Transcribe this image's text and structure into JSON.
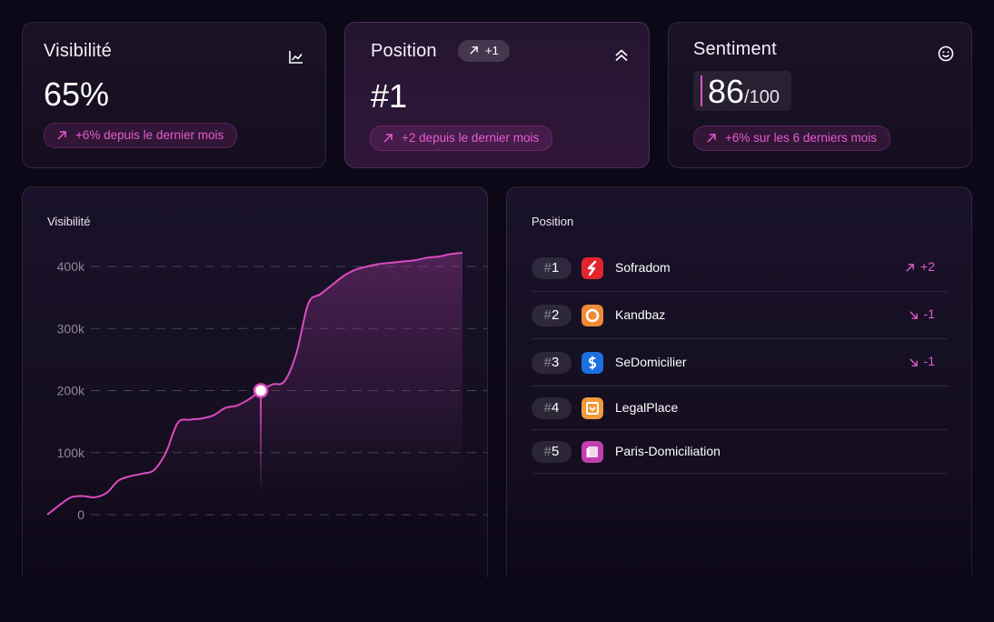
{
  "kpis": {
    "visibility": {
      "title": "Visibilité",
      "value": "65%",
      "change": "+6% depuis le dernier mois",
      "icon": "chart-line-icon"
    },
    "position": {
      "title": "Position",
      "badge": "+1",
      "value": "#1",
      "change": "+2 depuis le dernier mois",
      "icon": "chevrons-up-icon"
    },
    "sentiment": {
      "title": "Sentiment",
      "value": "86",
      "max": "/100",
      "change": "+6% sur les 6 derniers mois",
      "icon": "smiley-icon"
    }
  },
  "chart_panel": {
    "title": "Visibilité"
  },
  "chart_data": {
    "type": "area",
    "title": "Visibilité",
    "xlabel": "",
    "ylabel": "",
    "ylim": [
      0,
      400000
    ],
    "yticks": [
      0,
      100000,
      200000,
      300000,
      400000
    ],
    "ytick_labels": [
      "0",
      "100k",
      "200k",
      "300k",
      "400k"
    ],
    "grid": true,
    "x": [
      0,
      1,
      2,
      3,
      4,
      5,
      6,
      7,
      8,
      9,
      10,
      11,
      12,
      13,
      14,
      15,
      16,
      17,
      18,
      19,
      20,
      21,
      22,
      23,
      24,
      25,
      26,
      27,
      28,
      29,
      30,
      31,
      32,
      33,
      34,
      35
    ],
    "values": [
      0,
      15000,
      28000,
      30000,
      28000,
      35000,
      55000,
      62000,
      66000,
      72000,
      100000,
      148000,
      153000,
      155000,
      160000,
      172000,
      176000,
      186000,
      200000,
      210000,
      215000,
      260000,
      340000,
      355000,
      370000,
      385000,
      395000,
      400000,
      404000,
      406000,
      408000,
      410000,
      414000,
      416000,
      420000,
      422000
    ],
    "highlight_index": 18,
    "highlight_value": 200000,
    "line_color": "#d94cc0"
  },
  "ranking": {
    "title": "Position",
    "items": [
      {
        "rank_prefix": "#",
        "rank": "1",
        "name": "Sofradom",
        "delta": "+2",
        "direction": "up",
        "logo_color": "#e2252d",
        "logo_icon": "sofradom-logo-icon"
      },
      {
        "rank_prefix": "#",
        "rank": "2",
        "name": "Kandbaz",
        "delta": "-1",
        "direction": "down",
        "logo_color": "#ef8a34",
        "logo_icon": "kandbaz-logo-icon"
      },
      {
        "rank_prefix": "#",
        "rank": "3",
        "name": "SeDomicilier",
        "delta": "-1",
        "direction": "down",
        "logo_color": "#1b6fe0",
        "logo_icon": "sedomicilier-logo-icon"
      },
      {
        "rank_prefix": "#",
        "rank": "4",
        "name": "LegalPlace",
        "delta": "",
        "direction": "none",
        "logo_color": "#ef9a3b",
        "logo_icon": "legalplace-logo-icon"
      },
      {
        "rank_prefix": "#",
        "rank": "5",
        "name": "Paris-Domiciliation",
        "delta": "",
        "direction": "none",
        "logo_color": "#c13fae",
        "logo_icon": "paris-domiciliation-logo-icon"
      }
    ]
  },
  "colors": {
    "accent": "#e55bd0",
    "background": "#0d0818"
  }
}
